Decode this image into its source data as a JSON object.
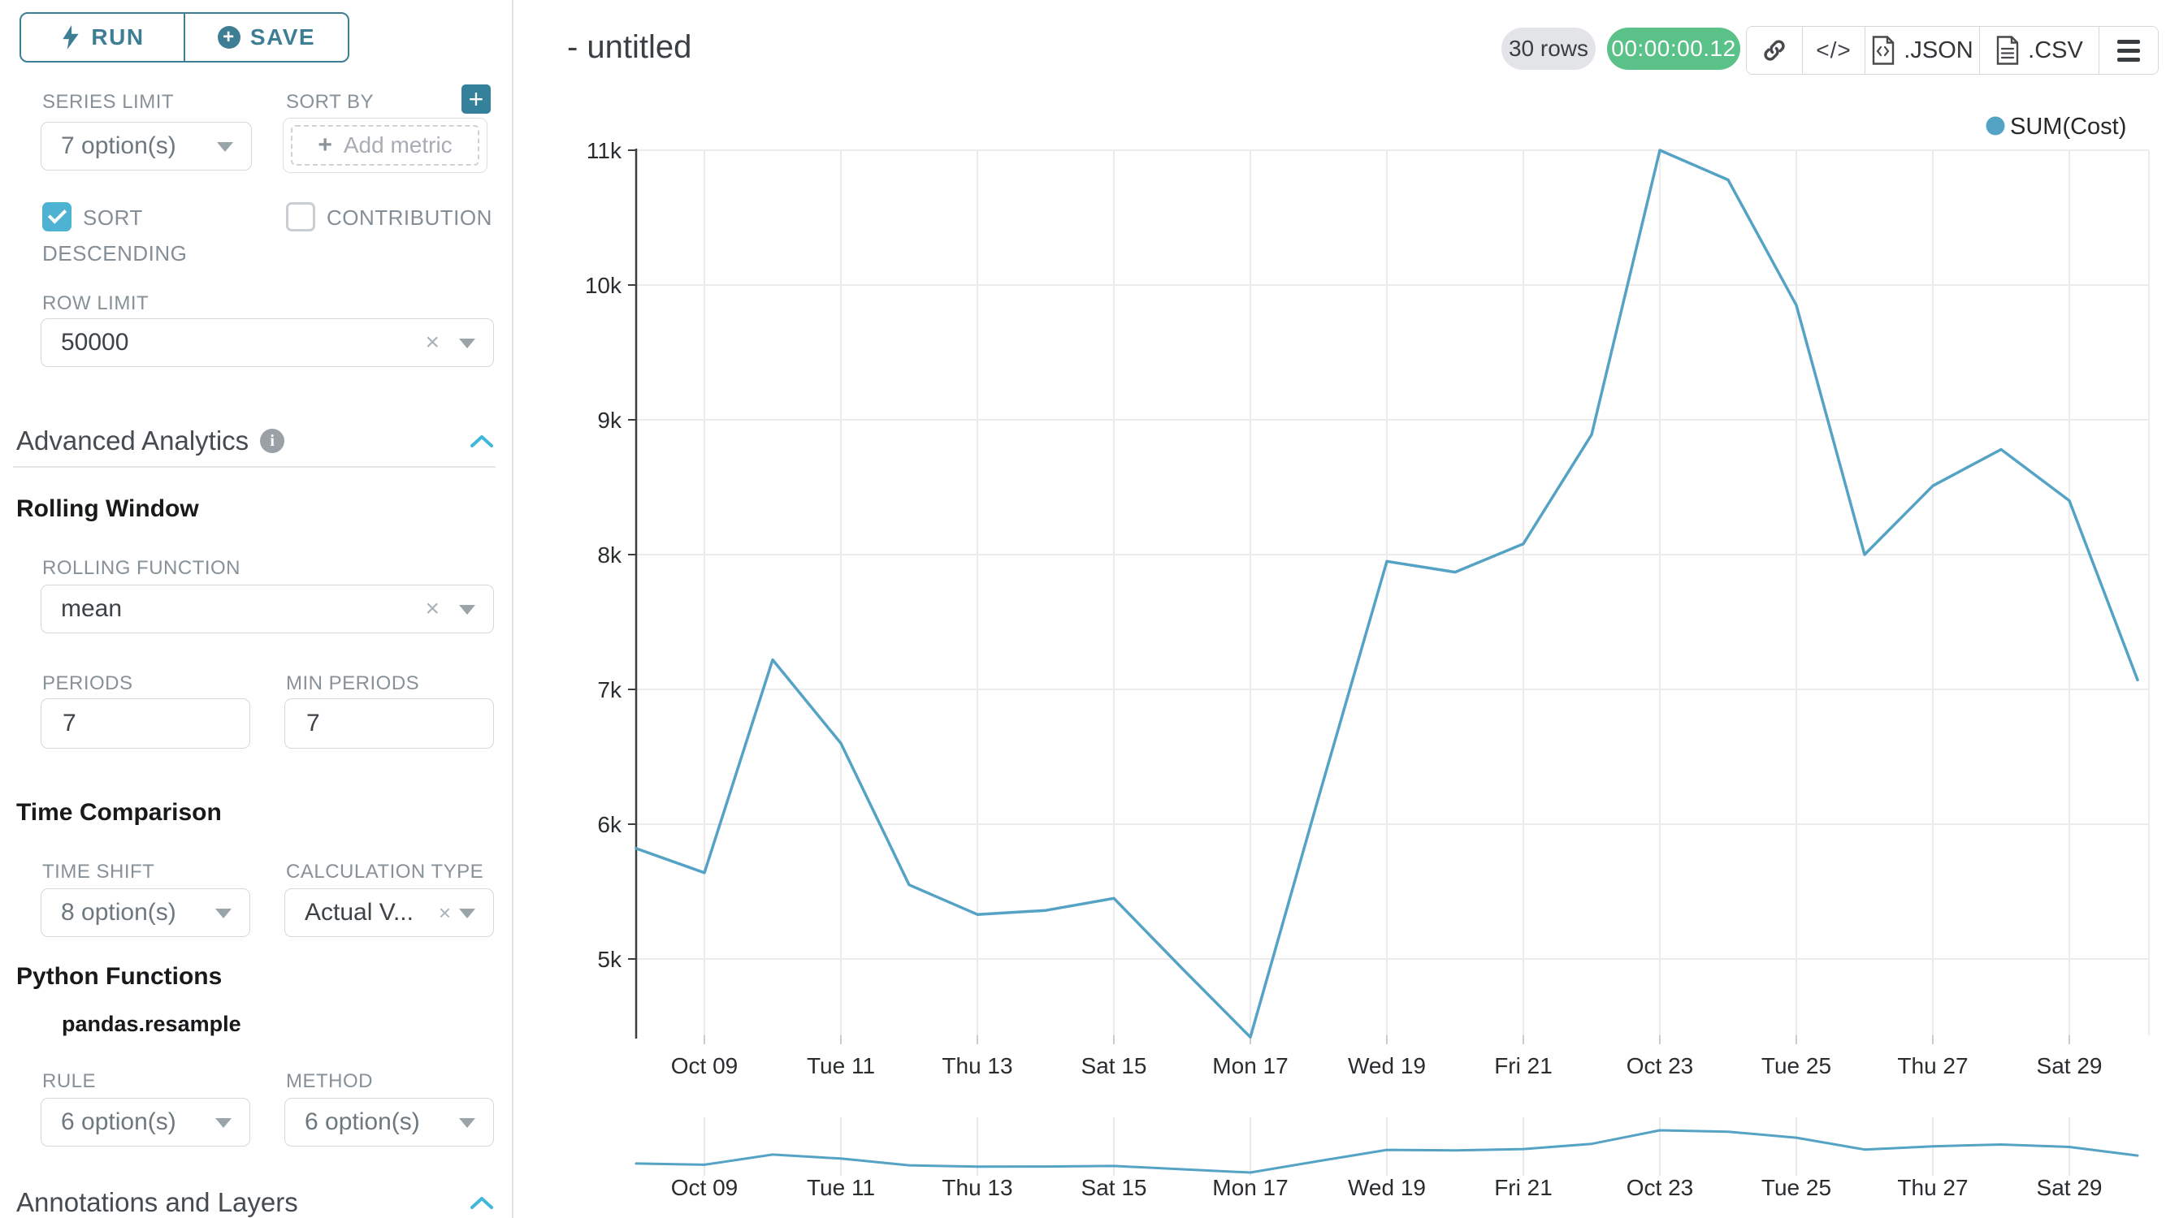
{
  "sidebar": {
    "run_label": "RUN",
    "save_label": "SAVE",
    "series_limit": {
      "label": "SERIES LIMIT",
      "value": "7 option(s)"
    },
    "sort_by": {
      "label": "SORT BY",
      "placeholder": "Add metric"
    },
    "sort_descending_label": "SORT DESCENDING",
    "contribution_label": "CONTRIBUTION",
    "row_limit": {
      "label": "ROW LIMIT",
      "value": "50000"
    },
    "advanced_analytics_title": "Advanced Analytics",
    "rolling_window": {
      "title": "Rolling Window",
      "function_label": "ROLLING FUNCTION",
      "function_value": "mean",
      "periods_label": "PERIODS",
      "periods_value": "7",
      "min_periods_label": "MIN PERIODS",
      "min_periods_value": "7"
    },
    "time_comparison": {
      "title": "Time Comparison",
      "time_shift_label": "TIME SHIFT",
      "time_shift_value": "8 option(s)",
      "calc_type_label": "CALCULATION TYPE",
      "calc_type_value": "Actual V..."
    },
    "python_functions": {
      "title": "Python Functions",
      "subtitle": "pandas.resample",
      "rule_label": "RULE",
      "rule_value": "6 option(s)",
      "method_label": "METHOD",
      "method_value": "6 option(s)"
    },
    "annotations_title": "Annotations and Layers"
  },
  "header": {
    "title": "- untitled",
    "rows_badge": "30 rows",
    "timer": "00:00:00.12",
    "export_json": ".JSON",
    "export_csv": ".CSV"
  },
  "chart_data": {
    "type": "line",
    "title": "- untitled",
    "legend": [
      "SUM(Cost)"
    ],
    "legend_position": "top-right",
    "grid": true,
    "line_color": "#55a3c4",
    "xlabel": "",
    "ylabel": "",
    "ylim": [
      4420,
      11050
    ],
    "y_tick_labels": [
      "5k",
      "6k",
      "7k",
      "8k",
      "9k",
      "10k",
      "11k"
    ],
    "y_tick_values": [
      5000,
      6000,
      7000,
      8000,
      9000,
      10000,
      11000
    ],
    "x_tick_labels": [
      "Oct 09",
      "Tue 11",
      "Thu 13",
      "Sat 15",
      "Mon 17",
      "Wed 19",
      "Fri 21",
      "Oct 23",
      "Tue 25",
      "Thu 27",
      "Sat 29"
    ],
    "has_mini_preview": true,
    "series": [
      {
        "name": "SUM(Cost)",
        "dates": [
          "Oct 08",
          "Oct 09",
          "Oct 10",
          "Oct 11",
          "Oct 12",
          "Oct 13",
          "Oct 14",
          "Oct 15",
          "Oct 16",
          "Oct 17",
          "Oct 18",
          "Oct 19",
          "Oct 20",
          "Oct 21",
          "Oct 22",
          "Oct 23",
          "Oct 24",
          "Oct 25",
          "Oct 26",
          "Oct 27",
          "Oct 28",
          "Oct 29",
          "Oct 30"
        ],
        "values": [
          5820,
          5640,
          7220,
          6600,
          5550,
          5330,
          5360,
          5450,
          4930,
          4420,
          6200,
          7950,
          7870,
          8080,
          8890,
          11000,
          10780,
          9850,
          8000,
          8510,
          8780,
          8400,
          7070
        ]
      }
    ]
  }
}
